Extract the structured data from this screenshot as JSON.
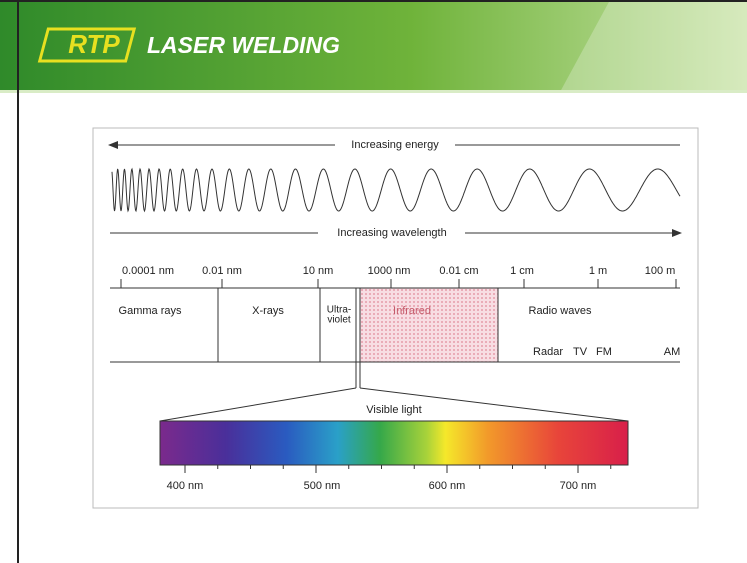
{
  "header": {
    "logo": "RTP",
    "title": "LASER WELDING"
  },
  "diagram": {
    "energy_label": "Increasing energy",
    "wavelength_label": "Increasing wavelength",
    "scale": [
      "0.0001 nm",
      "0.01 nm",
      "10 nm",
      "1000 nm",
      "0.01 cm",
      "1 cm",
      "1 m",
      "100 m"
    ],
    "bands": {
      "gamma": "Gamma rays",
      "xray": "X-rays",
      "uv": [
        "Ultra-",
        "violet"
      ],
      "infrared": "Infrared",
      "radio": "Radio waves"
    },
    "radio_sub": [
      "Radar",
      "TV",
      "FM",
      "AM"
    ],
    "visible_label": "Visible light",
    "visible_scale": [
      "400 nm",
      "500 nm",
      "600 nm",
      "700 nm"
    ]
  }
}
